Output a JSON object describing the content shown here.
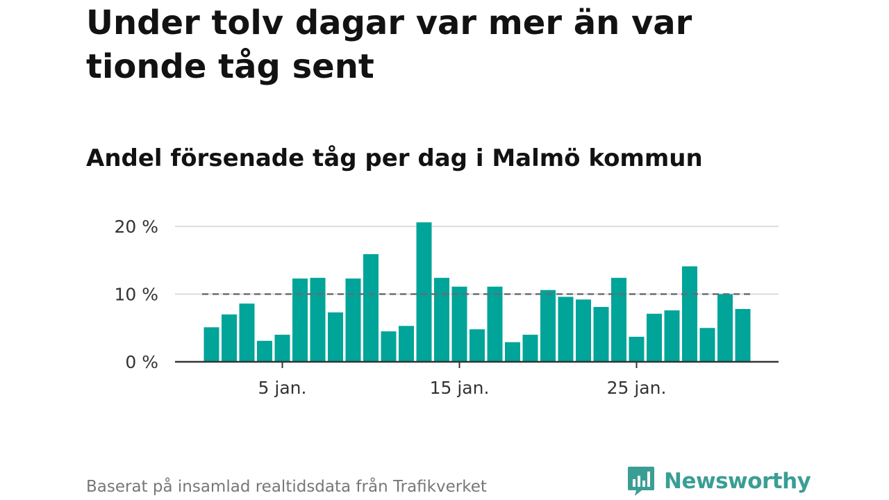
{
  "title": "Under tolv dagar var mer än var tionde tåg sent",
  "subtitle": "Andel försenade tåg per dag i Malmö kommun",
  "footer": {
    "source": "Baserat på insamlad realtidsdata från Trafikverket",
    "brand": "Newsworthy",
    "brand_icon": "bar-chart-speech-bubble-icon"
  },
  "colors": {
    "bar": "#00a499",
    "reference_line": "#6b6b72",
    "grid": "#dddddd",
    "baseline": "#333333",
    "brand": "#3a9e94"
  },
  "chart_data": {
    "type": "bar",
    "x": [
      1,
      2,
      3,
      4,
      5,
      6,
      7,
      8,
      9,
      10,
      11,
      12,
      13,
      14,
      15,
      16,
      17,
      18,
      19,
      20,
      21,
      22,
      23,
      24,
      25,
      26,
      27,
      28,
      29,
      30,
      31
    ],
    "x_unit": "jan.",
    "values": [
      5.1,
      7.0,
      8.6,
      3.1,
      4.0,
      12.3,
      12.4,
      7.3,
      12.3,
      15.9,
      4.5,
      5.3,
      20.6,
      12.4,
      11.1,
      4.8,
      11.1,
      2.9,
      4.0,
      10.6,
      9.6,
      9.2,
      8.1,
      12.4,
      3.7,
      7.1,
      7.6,
      14.1,
      5.0,
      10.0,
      7.8
    ],
    "xticks": [
      {
        "x": 5,
        "label": "5 jan."
      },
      {
        "x": 15,
        "label": "15 jan."
      },
      {
        "x": 25,
        "label": "25 jan."
      }
    ],
    "yticks": [
      {
        "y": 0,
        "label": "0 %"
      },
      {
        "y": 10,
        "label": "10 %"
      },
      {
        "y": 20,
        "label": "20 %"
      }
    ],
    "ylim": [
      0,
      20.6
    ],
    "reference_line": {
      "value": 10,
      "style": "dashed"
    },
    "grid": true,
    "legend": "none",
    "xlabel": "",
    "ylabel": ""
  }
}
